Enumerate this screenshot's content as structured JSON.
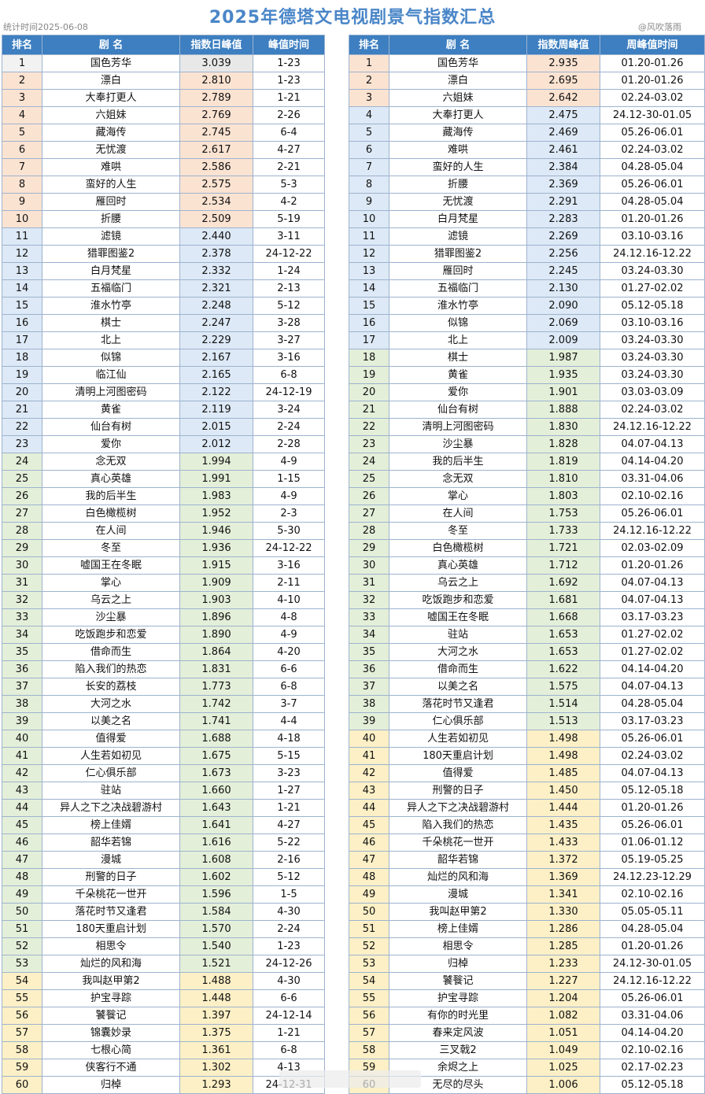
{
  "title": "2025年德塔文电视剧景气指数汇总",
  "stat_date": "统计时间2025-06-08",
  "watermark": "@风吹落雨",
  "colors": {
    "header": "#3d7fc1",
    "orange": "#fbe3d2",
    "blue": "#dde9f6",
    "green": "#e4efd9",
    "yellow": "#fdf0c6"
  },
  "left": {
    "headers": [
      "排名",
      "剧 名",
      "指数日峰值",
      "峰值时间"
    ],
    "rows": [
      [
        "1",
        "国色芳华",
        "3.039",
        "1-23"
      ],
      [
        "2",
        "漂白",
        "2.810",
        "1-23"
      ],
      [
        "3",
        "大奉打更人",
        "2.789",
        "1-21"
      ],
      [
        "4",
        "六姐妹",
        "2.769",
        "2-26"
      ],
      [
        "5",
        "藏海传",
        "2.745",
        "6-4"
      ],
      [
        "6",
        "无忧渡",
        "2.617",
        "4-27"
      ],
      [
        "7",
        "难哄",
        "2.586",
        "2-21"
      ],
      [
        "8",
        "蛮好的人生",
        "2.575",
        "5-3"
      ],
      [
        "9",
        "雁回时",
        "2.534",
        "4-2"
      ],
      [
        "10",
        "折腰",
        "2.509",
        "5-19"
      ],
      [
        "11",
        "滤镜",
        "2.440",
        "3-11"
      ],
      [
        "12",
        "猎罪图鉴2",
        "2.378",
        "24-12-22"
      ],
      [
        "13",
        "白月梵星",
        "2.332",
        "1-24"
      ],
      [
        "14",
        "五福临门",
        "2.321",
        "2-13"
      ],
      [
        "15",
        "淮水竹亭",
        "2.248",
        "5-12"
      ],
      [
        "16",
        "棋士",
        "2.247",
        "3-28"
      ],
      [
        "17",
        "北上",
        "2.229",
        "3-27"
      ],
      [
        "18",
        "似锦",
        "2.167",
        "3-16"
      ],
      [
        "19",
        "临江仙",
        "2.165",
        "6-8"
      ],
      [
        "20",
        "清明上河图密码",
        "2.122",
        "24-12-19"
      ],
      [
        "21",
        "黄雀",
        "2.119",
        "3-24"
      ],
      [
        "22",
        "仙台有树",
        "2.015",
        "2-24"
      ],
      [
        "23",
        "爱你",
        "2.012",
        "2-28"
      ],
      [
        "24",
        "念无双",
        "1.994",
        "4-9"
      ],
      [
        "25",
        "真心英雄",
        "1.991",
        "1-15"
      ],
      [
        "26",
        "我的后半生",
        "1.983",
        "4-9"
      ],
      [
        "27",
        "白色橄榄树",
        "1.952",
        "2-3"
      ],
      [
        "28",
        "在人间",
        "1.946",
        "5-30"
      ],
      [
        "29",
        "冬至",
        "1.936",
        "24-12-22"
      ],
      [
        "30",
        "嘘国王在冬眠",
        "1.915",
        "3-16"
      ],
      [
        "31",
        "掌心",
        "1.909",
        "2-11"
      ],
      [
        "32",
        "乌云之上",
        "1.903",
        "4-10"
      ],
      [
        "33",
        "沙尘暴",
        "1.896",
        "4-8"
      ],
      [
        "34",
        "吃饭跑步和恋爱",
        "1.890",
        "4-9"
      ],
      [
        "35",
        "借命而生",
        "1.864",
        "4-20"
      ],
      [
        "36",
        "陷入我们的热恋",
        "1.831",
        "6-6"
      ],
      [
        "37",
        "长安的荔枝",
        "1.773",
        "6-8"
      ],
      [
        "38",
        "大河之水",
        "1.742",
        "3-7"
      ],
      [
        "39",
        "以美之名",
        "1.741",
        "4-4"
      ],
      [
        "40",
        "值得爱",
        "1.688",
        "4-18"
      ],
      [
        "41",
        "人生若如初见",
        "1.675",
        "5-15"
      ],
      [
        "42",
        "仁心俱乐部",
        "1.673",
        "3-23"
      ],
      [
        "43",
        "驻站",
        "1.660",
        "1-27"
      ],
      [
        "44",
        "异人之下之决战碧游村",
        "1.643",
        "1-21"
      ],
      [
        "45",
        "榜上佳婿",
        "1.641",
        "4-27"
      ],
      [
        "46",
        "韶华若锦",
        "1.616",
        "5-22"
      ],
      [
        "47",
        "漫城",
        "1.608",
        "2-16"
      ],
      [
        "48",
        "刑警的日子",
        "1.602",
        "5-12"
      ],
      [
        "49",
        "千朵桃花一世开",
        "1.596",
        "1-5"
      ],
      [
        "50",
        "落花时节又逢君",
        "1.584",
        "4-30"
      ],
      [
        "51",
        "180天重启计划",
        "1.570",
        "2-24"
      ],
      [
        "52",
        "相思令",
        "1.540",
        "1-23"
      ],
      [
        "53",
        "灿烂的风和海",
        "1.521",
        "24-12-26"
      ],
      [
        "54",
        "我叫赵甲第2",
        "1.488",
        "4-30"
      ],
      [
        "55",
        "护宝寻踪",
        "1.448",
        "6-6"
      ],
      [
        "56",
        "饕餮记",
        "1.397",
        "24-12-14"
      ],
      [
        "57",
        "锦囊妙录",
        "1.375",
        "1-21"
      ],
      [
        "58",
        "七根心简",
        "1.361",
        "6-8"
      ],
      [
        "59",
        "侠客行不通",
        "1.302",
        "4-13"
      ],
      [
        "60",
        "归棹",
        "1.293",
        "24-12-31"
      ]
    ]
  },
  "right": {
    "headers": [
      "排名",
      "剧 名",
      "指数周峰值",
      "周峰值时间"
    ],
    "rows": [
      [
        "1",
        "国色芳华",
        "2.935",
        "01.20-01.26"
      ],
      [
        "2",
        "漂白",
        "2.695",
        "01.20-01.26"
      ],
      [
        "3",
        "六姐妹",
        "2.642",
        "02.24-03.02"
      ],
      [
        "4",
        "大奉打更人",
        "2.475",
        "24.12-30-01.05"
      ],
      [
        "5",
        "藏海传",
        "2.469",
        "05.26-06.01"
      ],
      [
        "6",
        "难哄",
        "2.461",
        "02.24-03.02"
      ],
      [
        "7",
        "蛮好的人生",
        "2.384",
        "04.28-05.04"
      ],
      [
        "8",
        "折腰",
        "2.369",
        "05.26-06.01"
      ],
      [
        "9",
        "无忧渡",
        "2.291",
        "04.28-05.04"
      ],
      [
        "10",
        "白月梵星",
        "2.283",
        "01.20-01.26"
      ],
      [
        "11",
        "滤镜",
        "2.269",
        "03.10-03.16"
      ],
      [
        "12",
        "猎罪图鉴2",
        "2.256",
        "24.12.16-12.22"
      ],
      [
        "13",
        "雁回时",
        "2.245",
        "03.24-03.30"
      ],
      [
        "14",
        "五福临门",
        "2.130",
        "01.27-02.02"
      ],
      [
        "15",
        "淮水竹亭",
        "2.090",
        "05.12-05.18"
      ],
      [
        "16",
        "似锦",
        "2.069",
        "03.10-03.16"
      ],
      [
        "17",
        "北上",
        "2.009",
        "03.24-03.30"
      ],
      [
        "18",
        "棋士",
        "1.987",
        "03.24-03.30"
      ],
      [
        "19",
        "黄雀",
        "1.935",
        "03.24-03.30"
      ],
      [
        "20",
        "爱你",
        "1.901",
        "03.03-03.09"
      ],
      [
        "21",
        "仙台有树",
        "1.888",
        "02.24-03.02"
      ],
      [
        "22",
        "清明上河图密码",
        "1.830",
        "24.12.16-12.22"
      ],
      [
        "23",
        "沙尘暴",
        "1.828",
        "04.07-04.13"
      ],
      [
        "24",
        "我的后半生",
        "1.819",
        "04.14-04.20"
      ],
      [
        "25",
        "念无双",
        "1.810",
        "03.31-04.06"
      ],
      [
        "26",
        "掌心",
        "1.803",
        "02.10-02.16"
      ],
      [
        "27",
        "在人间",
        "1.753",
        "05.26-06.01"
      ],
      [
        "28",
        "冬至",
        "1.733",
        "24.12.16-12.22"
      ],
      [
        "29",
        "白色橄榄树",
        "1.721",
        "02.03-02.09"
      ],
      [
        "30",
        "真心英雄",
        "1.712",
        "01.20-01.26"
      ],
      [
        "31",
        "乌云之上",
        "1.692",
        "04.07-04.13"
      ],
      [
        "32",
        "吃饭跑步和恋爱",
        "1.681",
        "04.07-04.13"
      ],
      [
        "33",
        "嘘国王在冬眠",
        "1.668",
        "03.17-03.23"
      ],
      [
        "34",
        "驻站",
        "1.653",
        "01.27-02.02"
      ],
      [
        "35",
        "大河之水",
        "1.653",
        "01.27-02.02"
      ],
      [
        "36",
        "借命而生",
        "1.622",
        "04.14-04.20"
      ],
      [
        "37",
        "以美之名",
        "1.575",
        "04.07-04.13"
      ],
      [
        "38",
        "落花时节又逢君",
        "1.514",
        "04.28-05.04"
      ],
      [
        "39",
        "仁心俱乐部",
        "1.513",
        "03.17-03.23"
      ],
      [
        "40",
        "人生若如初见",
        "1.498",
        "05.26-06.01"
      ],
      [
        "41",
        "180天重启计划",
        "1.498",
        "02.24-03.02"
      ],
      [
        "42",
        "值得爱",
        "1.485",
        "04.07-04.13"
      ],
      [
        "43",
        "刑警的日子",
        "1.450",
        "05.12-05.18"
      ],
      [
        "44",
        "异人之下之决战碧游村",
        "1.444",
        "01.20-01.26"
      ],
      [
        "45",
        "陷入我们的热恋",
        "1.435",
        "05.26-06.01"
      ],
      [
        "46",
        "千朵桃花一世开",
        "1.433",
        "01.06-01.12"
      ],
      [
        "47",
        "韶华若锦",
        "1.372",
        "05.19-05.25"
      ],
      [
        "48",
        "灿烂的风和海",
        "1.369",
        "24.12.23-12.29"
      ],
      [
        "49",
        "漫城",
        "1.341",
        "02.10-02.16"
      ],
      [
        "50",
        "我叫赵甲第2",
        "1.330",
        "05.05-05.11"
      ],
      [
        "51",
        "榜上佳婿",
        "1.286",
        "04.28-05.04"
      ],
      [
        "52",
        "相思令",
        "1.285",
        "01.20-01.26"
      ],
      [
        "53",
        "归棹",
        "1.233",
        "24.12-30-01.05"
      ],
      [
        "54",
        "饕餮记",
        "1.227",
        "24.12.16-12.22"
      ],
      [
        "55",
        "护宝寻踪",
        "1.204",
        "05.26-06.01"
      ],
      [
        "56",
        "有你的时光里",
        "1.082",
        "03.31-04.06"
      ],
      [
        "57",
        "春来定风波",
        "1.051",
        "04.14-04.20"
      ],
      [
        "58",
        "三叉戟2",
        "1.049",
        "02.10-02.16"
      ],
      [
        "59",
        "余烬之上",
        "1.025",
        "02.17-02.23"
      ],
      [
        "60",
        "无尽的尽头",
        "1.006",
        "05.12-05.18"
      ]
    ]
  }
}
